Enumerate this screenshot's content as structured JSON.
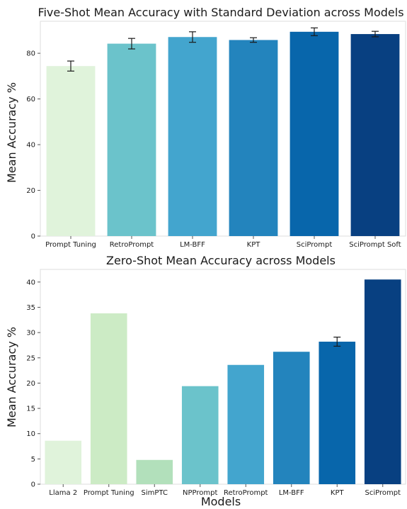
{
  "chart_data": [
    {
      "type": "bar",
      "title": "Five-Shot Mean Accuracy with Standard Deviation across Models",
      "xlabel": "",
      "ylabel": "Mean Accuracy %",
      "ylim": [
        0,
        94
      ],
      "yticks": [
        0,
        20,
        40,
        60,
        80
      ],
      "grid": false,
      "categories": [
        "Prompt Tuning",
        "RetroPrompt",
        "LM-BFF",
        "KPT",
        "SciPrompt",
        "SciPrompt Soft"
      ],
      "values": [
        74.4,
        84.2,
        87.1,
        85.8,
        89.4,
        88.4
      ],
      "errors": [
        2.2,
        2.3,
        2.3,
        1.0,
        1.7,
        1.2
      ],
      "colors": [
        "#e0f3db",
        "#6bc3cb",
        "#43a5ce",
        "#2384bd",
        "#0866ab",
        "#084081"
      ]
    },
    {
      "type": "bar",
      "title": "Zero-Shot Mean Accuracy across Models",
      "xlabel": "Models",
      "ylabel": "Mean Accuracy %",
      "ylim": [
        0,
        42.5
      ],
      "yticks": [
        0,
        5,
        10,
        15,
        20,
        25,
        30,
        35,
        40
      ],
      "grid": false,
      "categories": [
        "Llama 2",
        "Prompt Tuning",
        "SimPTC",
        "NPPrompt",
        "RetroPrompt",
        "LM-BFF",
        "KPT",
        "SciPrompt"
      ],
      "values": [
        8.6,
        33.8,
        4.8,
        19.4,
        23.6,
        26.2,
        28.2,
        40.5
      ],
      "errors": [
        0,
        0,
        0,
        0,
        0,
        0,
        0.9,
        0
      ],
      "colors": [
        "#e0f3db",
        "#ccebc5",
        "#b2e0bb",
        "#6bc3cb",
        "#43a5ce",
        "#2384bd",
        "#0866ab",
        "#084081"
      ]
    }
  ]
}
